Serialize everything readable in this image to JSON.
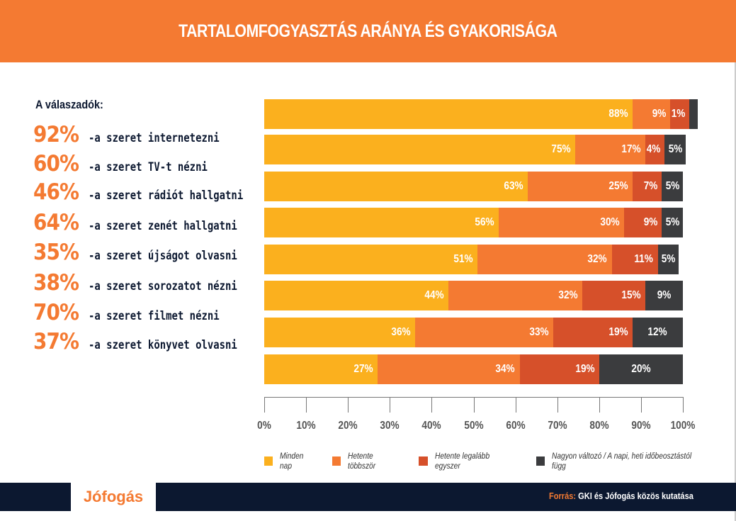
{
  "title": "TARTALOMFOGYASZTÁS ARÁNYA ÉS GYAKORISÁGA",
  "respondents": {
    "title": "A válaszadók:",
    "items": [
      {
        "pct": "92%",
        "text": "-a szeret internetezni"
      },
      {
        "pct": "60%",
        "text": "-a szeret TV-t nézni"
      },
      {
        "pct": "46%",
        "text": "-a szeret rádiót hallgatni"
      },
      {
        "pct": "64%",
        "text": "-a szeret zenét hallgatni"
      },
      {
        "pct": "35%",
        "text": "-a szeret újságot olvasni"
      },
      {
        "pct": "38%",
        "text": "-a szeret sorozatot nézni"
      },
      {
        "pct": "70%",
        "text": "-a szeret filmet nézni"
      },
      {
        "pct": "37%",
        "text": "-a szeret könyvet olvasni"
      }
    ]
  },
  "chart_data": {
    "type": "bar",
    "orientation": "horizontal",
    "stacked": true,
    "categories": [
      "internetezni",
      "TV-t nézni",
      "rádiót hallgatni",
      "zenét hallgatni",
      "újságot olvasni",
      "sorozatot nézni",
      "filmet nézni",
      "könyvet olvasni"
    ],
    "series": [
      {
        "name": "Minden nap",
        "color": "#fbb01e",
        "values": [
          88,
          75,
          63,
          56,
          51,
          44,
          36,
          27
        ]
      },
      {
        "name": "Hetente többször",
        "color": "#f47a32",
        "values": [
          9,
          17,
          25,
          30,
          32,
          32,
          33,
          34
        ]
      },
      {
        "name": "Hetente legalább egyszer",
        "color": "#d6502a",
        "values": [
          1,
          4,
          7,
          9,
          11,
          15,
          19,
          19
        ]
      },
      {
        "name": "Nagyon változó / A napi, heti időbeosztástól függ",
        "color": "#3b3c3e",
        "values": [
          null,
          5,
          5,
          5,
          5,
          9,
          12,
          20
        ]
      }
    ],
    "xlim": [
      0,
      100
    ],
    "xticks": [
      "0%",
      "10%",
      "20%",
      "30%",
      "40%",
      "50%",
      "60%",
      "70%",
      "80%",
      "90%",
      "100%"
    ],
    "legend": "bottom"
  },
  "footer": {
    "logo": "Jófogás",
    "source_label": "Forrás:",
    "source": " GKI és Jófogás közös kutatása"
  }
}
